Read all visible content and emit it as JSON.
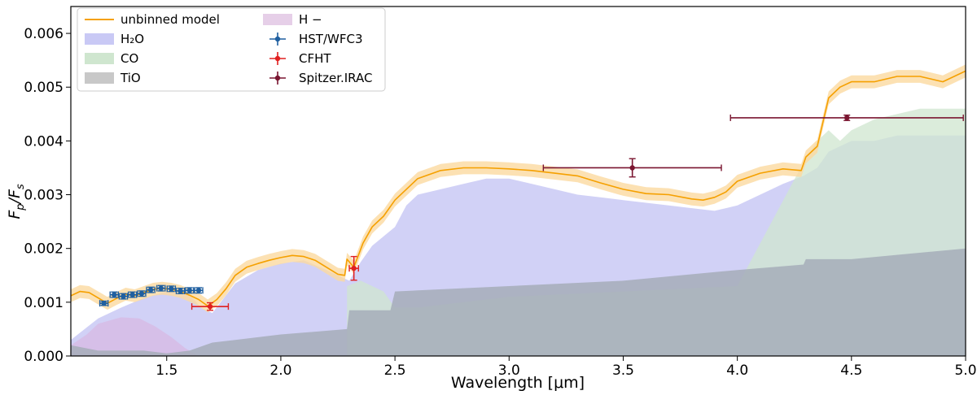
{
  "chart_data": {
    "type": "line",
    "title": "",
    "xlabel": "Wavelength [μm]",
    "ylabel_main": "F",
    "ylabel_sub1": "p",
    "ylabel_sep": "/F",
    "ylabel_sub2": "s",
    "xlim": [
      1.08,
      5.0
    ],
    "ylim": [
      0.0,
      0.0065
    ],
    "xticks": [
      1.5,
      2.0,
      2.5,
      3.0,
      3.5,
      4.0,
      4.5,
      5.0
    ],
    "xtick_labels": [
      "1.5",
      "2.0",
      "2.5",
      "3.0",
      "3.5",
      "4.0",
      "4.5",
      "5.0"
    ],
    "yticks": [
      0.0,
      0.001,
      0.002,
      0.003,
      0.004,
      0.005,
      0.006
    ],
    "ytick_labels": [
      "0.000",
      "0.001",
      "0.002",
      "0.003",
      "0.004",
      "0.005",
      "0.006"
    ],
    "colors": {
      "model": "#f5a000",
      "model_band": "#fbd9a0",
      "h2o": "#c9c9f5",
      "co": "#cfe6cf",
      "tio": "#a6adb8",
      "hminus": "#d9b8e3",
      "hst": "#1f5fa0",
      "cfht": "#e02020",
      "spitzer": "#7a1530"
    },
    "legend": {
      "location": "top-left",
      "entries": [
        {
          "label": "unbinned model",
          "kind": "line",
          "color": "#f5a000"
        },
        {
          "label": "H₂O",
          "kind": "patch",
          "color": "#c9c9f5"
        },
        {
          "label": "CO",
          "kind": "patch",
          "color": "#cfe6cf"
        },
        {
          "label": "TiO",
          "kind": "patch",
          "color": "#c8c8c8"
        },
        {
          "label": "H −",
          "kind": "patch",
          "color": "#e6cfe8"
        },
        {
          "label": "HST/WFC3",
          "kind": "errorbar",
          "color": "#1f5fa0"
        },
        {
          "label": "CFHT",
          "kind": "errorbar",
          "color": "#e02020"
        },
        {
          "label": "Spitzer.IRAC",
          "kind": "errorbar",
          "color": "#7a1530"
        }
      ]
    },
    "series": [
      {
        "name": "unbinned model",
        "x": [
          1.08,
          1.12,
          1.16,
          1.2,
          1.24,
          1.28,
          1.32,
          1.36,
          1.4,
          1.44,
          1.48,
          1.52,
          1.56,
          1.6,
          1.64,
          1.68,
          1.72,
          1.76,
          1.8,
          1.85,
          1.9,
          1.95,
          2.0,
          2.05,
          2.1,
          2.15,
          2.2,
          2.25,
          2.28,
          2.29,
          2.32,
          2.36,
          2.4,
          2.45,
          2.5,
          2.6,
          2.7,
          2.8,
          2.9,
          3.0,
          3.1,
          3.2,
          3.3,
          3.4,
          3.5,
          3.6,
          3.7,
          3.8,
          3.85,
          3.9,
          3.95,
          4.0,
          4.1,
          4.2,
          4.28,
          4.3,
          4.35,
          4.4,
          4.45,
          4.5,
          4.6,
          4.7,
          4.8,
          4.9,
          5.0
        ],
        "y": [
          0.00112,
          0.0012,
          0.00118,
          0.00108,
          0.00098,
          0.00107,
          0.00115,
          0.00112,
          0.00118,
          0.00124,
          0.00126,
          0.00124,
          0.0012,
          0.00113,
          0.00105,
          0.00093,
          0.00105,
          0.00125,
          0.0015,
          0.00165,
          0.00172,
          0.00178,
          0.00183,
          0.00187,
          0.00185,
          0.00178,
          0.00165,
          0.00152,
          0.0015,
          0.0018,
          0.00165,
          0.0021,
          0.0024,
          0.0026,
          0.0029,
          0.0033,
          0.00345,
          0.0035,
          0.0035,
          0.00348,
          0.00345,
          0.0034,
          0.00335,
          0.00322,
          0.0031,
          0.00302,
          0.003,
          0.00292,
          0.0029,
          0.00295,
          0.00305,
          0.00325,
          0.0034,
          0.00348,
          0.00345,
          0.0037,
          0.0039,
          0.0048,
          0.005,
          0.0051,
          0.0051,
          0.0052,
          0.0052,
          0.0051,
          0.0053
        ]
      },
      {
        "name": "H₂O",
        "x": [
          1.08,
          1.2,
          1.3,
          1.4,
          1.5,
          1.6,
          1.65,
          1.7,
          1.8,
          1.9,
          2.0,
          2.1,
          2.2,
          2.3,
          2.35,
          2.4,
          2.5,
          2.55,
          2.6,
          2.7,
          2.8,
          2.9,
          3.0,
          3.1,
          3.2,
          3.3,
          3.4,
          3.5,
          3.6,
          3.7,
          3.8,
          3.9,
          4.0,
          4.1,
          4.2,
          4.29,
          4.35,
          4.4,
          4.5,
          4.6,
          4.7,
          4.8,
          4.9,
          5.0
        ],
        "y": [
          0.0003,
          0.0007,
          0.0009,
          0.00108,
          0.0012,
          0.00115,
          0.0009,
          0.0008,
          0.00135,
          0.0016,
          0.00172,
          0.00178,
          0.0016,
          0.0014,
          0.00175,
          0.00205,
          0.0024,
          0.0028,
          0.003,
          0.0031,
          0.0032,
          0.0033,
          0.0033,
          0.0032,
          0.0031,
          0.003,
          0.00295,
          0.0029,
          0.00285,
          0.0028,
          0.00275,
          0.0027,
          0.0028,
          0.003,
          0.0032,
          0.00335,
          0.0035,
          0.0038,
          0.004,
          0.004,
          0.0041,
          0.0041,
          0.0041,
          0.0041
        ]
      },
      {
        "name": "CO",
        "x": [
          2.29,
          2.35,
          2.45,
          2.5,
          2.6,
          2.8,
          3.0,
          3.5,
          4.0,
          4.29,
          4.35,
          4.4,
          4.45,
          4.5,
          4.6,
          4.8,
          5.0
        ],
        "y": [
          0.0013,
          0.0014,
          0.0012,
          0.0009,
          0.0009,
          0.001,
          0.0011,
          0.0012,
          0.0013,
          0.0036,
          0.004,
          0.0042,
          0.004,
          0.0042,
          0.0044,
          0.0046,
          0.0046
        ]
      },
      {
        "name": "TiO",
        "x": [
          1.08,
          1.2,
          1.3,
          1.4,
          1.5,
          1.6,
          1.7,
          1.8,
          2.0,
          2.29,
          2.3,
          2.48,
          2.5,
          3.0,
          3.5,
          4.0,
          4.29,
          4.3,
          4.5,
          4.75,
          5.0
        ],
        "y": [
          0.0002,
          0.0001,
          0.0001,
          0.0001,
          5e-05,
          0.0001,
          0.00025,
          0.0003,
          0.0004,
          0.0005,
          0.00085,
          0.00085,
          0.0012,
          0.0013,
          0.0014,
          0.0016,
          0.0017,
          0.0018,
          0.0018,
          0.0019,
          0.002
        ]
      },
      {
        "name": "H −",
        "x": [
          1.08,
          1.15,
          1.2,
          1.3,
          1.38,
          1.45,
          1.52,
          1.58,
          1.64
        ],
        "y": [
          0.0002,
          0.0004,
          0.0006,
          0.00072,
          0.0007,
          0.00055,
          0.00035,
          0.00015,
          0.0
        ]
      }
    ],
    "observations": [
      {
        "name": "HST/WFC3",
        "color": "#1f5fa0",
        "points": [
          {
            "x": 1.225,
            "y": 0.00098,
            "xerr": 0.018,
            "yerr": 4e-05
          },
          {
            "x": 1.27,
            "y": 0.00114,
            "xerr": 0.018,
            "yerr": 5e-05
          },
          {
            "x": 1.31,
            "y": 0.00111,
            "xerr": 0.018,
            "yerr": 5e-05
          },
          {
            "x": 1.35,
            "y": 0.00114,
            "xerr": 0.018,
            "yerr": 5e-05
          },
          {
            "x": 1.39,
            "y": 0.00116,
            "xerr": 0.018,
            "yerr": 5e-05
          },
          {
            "x": 1.43,
            "y": 0.00123,
            "xerr": 0.018,
            "yerr": 5e-05
          },
          {
            "x": 1.475,
            "y": 0.00126,
            "xerr": 0.018,
            "yerr": 5e-05
          },
          {
            "x": 1.52,
            "y": 0.00125,
            "xerr": 0.018,
            "yerr": 5e-05
          },
          {
            "x": 1.56,
            "y": 0.00121,
            "xerr": 0.018,
            "yerr": 5e-05
          },
          {
            "x": 1.6,
            "y": 0.00122,
            "xerr": 0.018,
            "yerr": 5e-05
          },
          {
            "x": 1.64,
            "y": 0.00122,
            "xerr": 0.018,
            "yerr": 5e-05
          }
        ]
      },
      {
        "name": "CFHT",
        "color": "#e02020",
        "points": [
          {
            "x": 1.69,
            "y": 0.00092,
            "xerr": 0.08,
            "yerr": 7e-05
          },
          {
            "x": 2.32,
            "y": 0.00163,
            "xerr": 0.02,
            "yerr": 0.00022
          }
        ]
      },
      {
        "name": "Spitzer.IRAC",
        "color": "#7a1530",
        "points": [
          {
            "x": 3.54,
            "y": 0.0035,
            "xerr": 0.39,
            "yerr": 0.00017
          },
          {
            "x": 4.48,
            "y": 0.00443,
            "xerr": 0.51,
            "yerr": 5e-05
          }
        ]
      }
    ]
  }
}
